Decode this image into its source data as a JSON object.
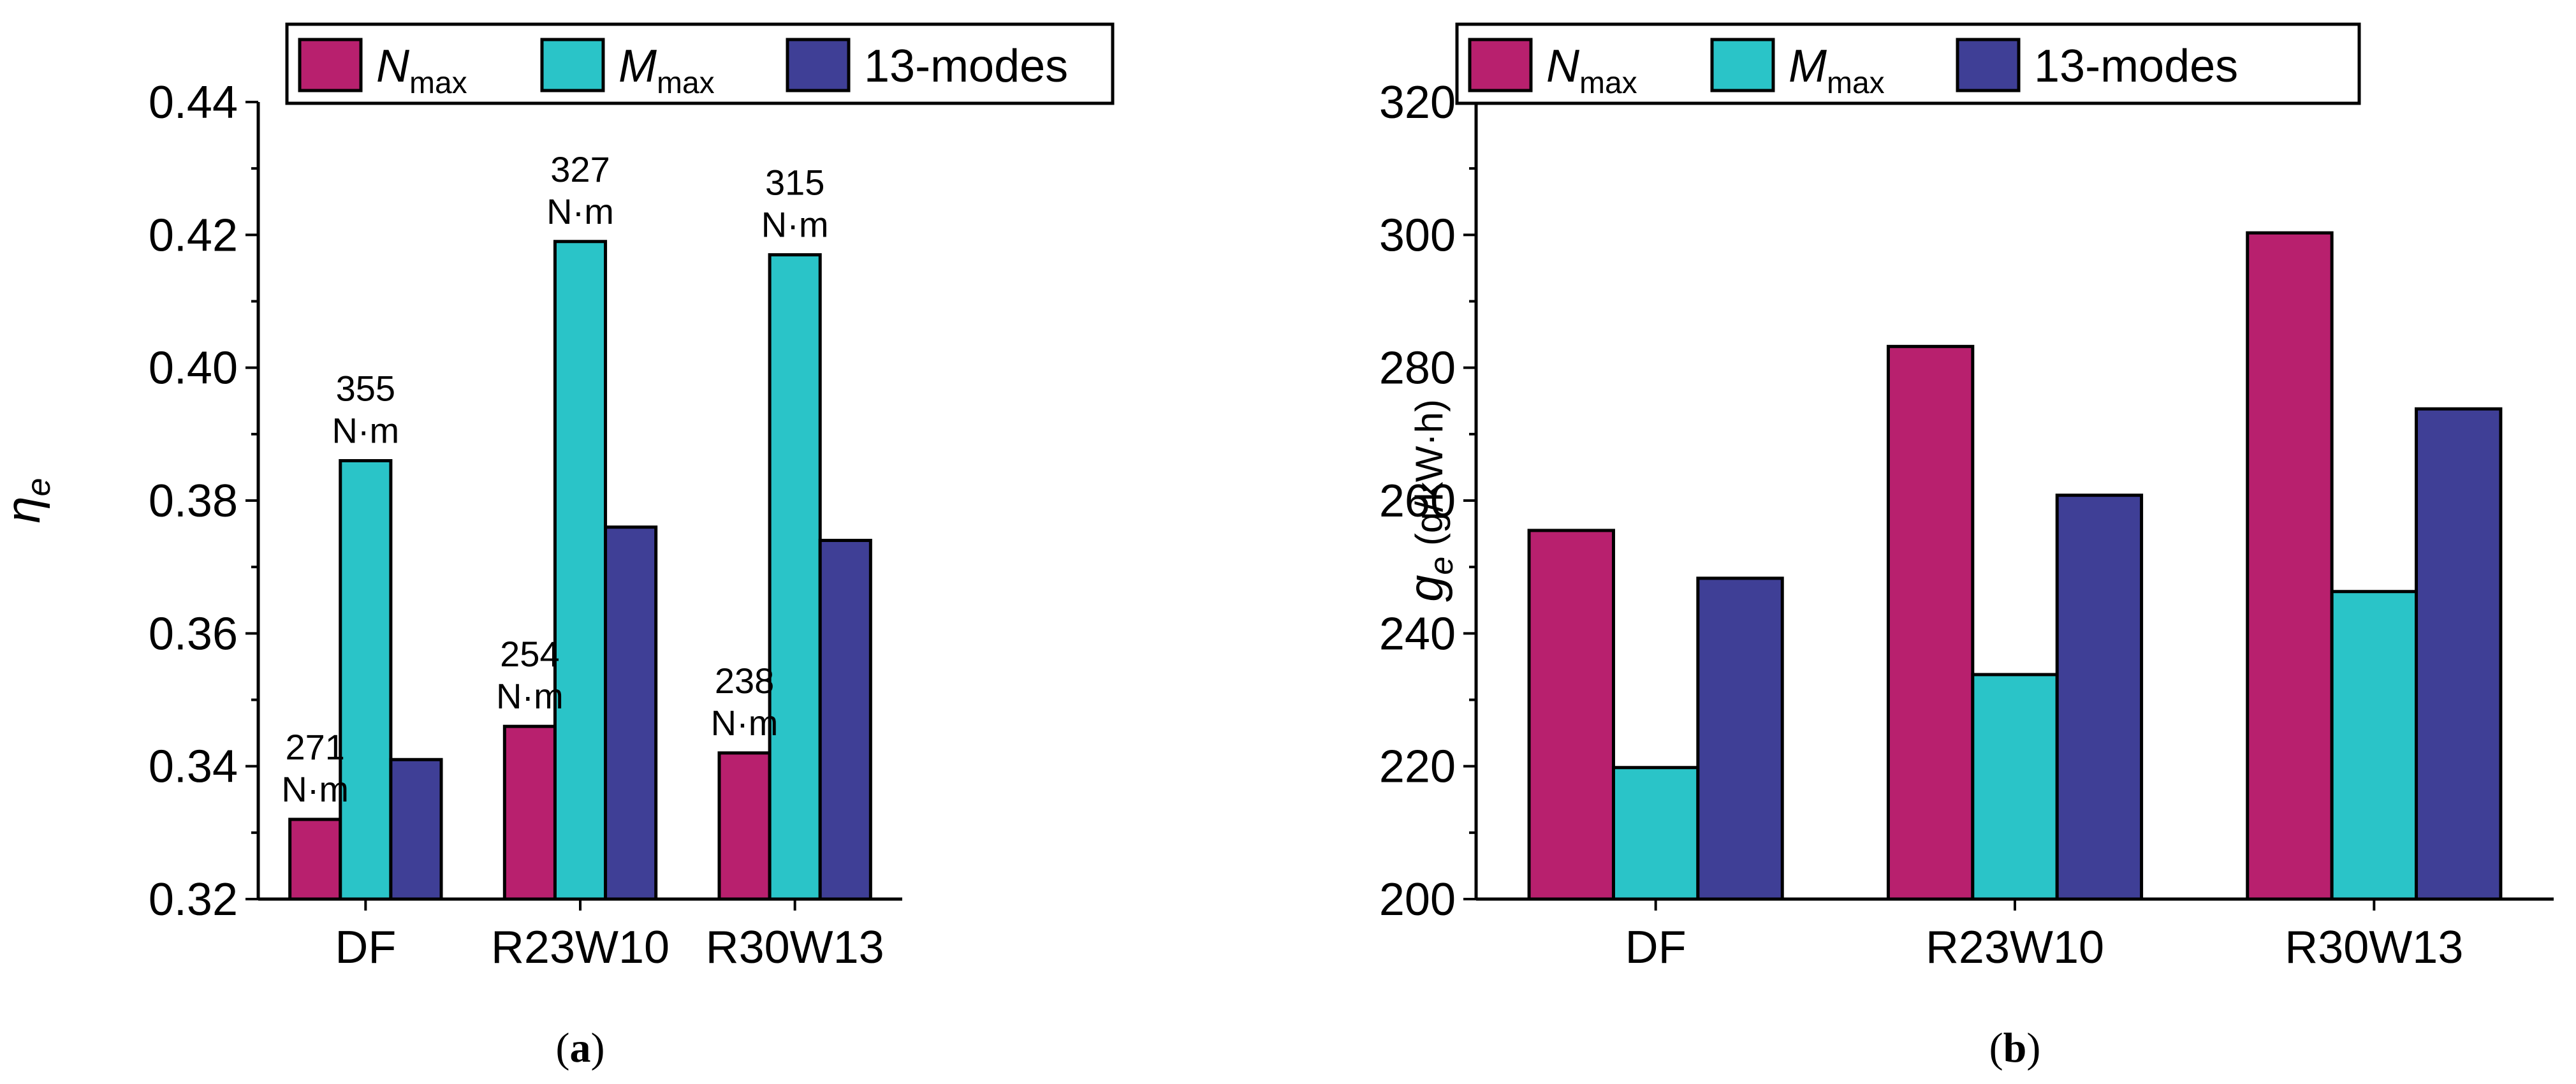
{
  "colors": {
    "nmax": "#b8206e",
    "mmax": "#2ac4c8",
    "modes": "#3f3f96"
  },
  "chart_data": [
    {
      "type": "bar",
      "categories": [
        "DF",
        "R23W10",
        "R30W13"
      ],
      "series": [
        {
          "name": "N_max",
          "values": [
            0.332,
            0.346,
            0.342
          ]
        },
        {
          "name": "M_max",
          "values": [
            0.386,
            0.419,
            0.417
          ]
        },
        {
          "name": "13-modes",
          "values": [
            0.341,
            0.376,
            0.374
          ]
        }
      ],
      "ylim": [
        0.32,
        0.44
      ],
      "yticks": [
        0.32,
        0.34,
        0.36,
        0.38,
        0.4,
        0.42,
        0.44
      ],
      "ytick_labels": [
        "0.32",
        "0.34",
        "0.36",
        "0.38",
        "0.40",
        "0.42",
        "0.44"
      ],
      "ylabel": {
        "symbol": "η",
        "sub": "e",
        "unit": ""
      },
      "legend": {
        "position": "top",
        "items": [
          {
            "symbol": "N",
            "sub": "max",
            "text": ""
          },
          {
            "symbol": "M",
            "sub": "max",
            "text": ""
          },
          {
            "symbol": "",
            "sub": "",
            "text": "13-modes"
          }
        ]
      },
      "annotations": [
        {
          "series": 0,
          "category": 0,
          "lines": [
            "271",
            "N·m"
          ]
        },
        {
          "series": 1,
          "category": 0,
          "lines": [
            "355",
            "N·m"
          ]
        },
        {
          "series": 0,
          "category": 1,
          "lines": [
            "254",
            "N·m"
          ]
        },
        {
          "series": 1,
          "category": 1,
          "lines": [
            "327",
            "N·m"
          ]
        },
        {
          "series": 0,
          "category": 2,
          "lines": [
            "238",
            "N·m"
          ]
        },
        {
          "series": 1,
          "category": 2,
          "lines": [
            "315",
            "N·m"
          ]
        }
      ],
      "caption": {
        "open": "(",
        "letter": "a",
        "close": ")"
      }
    },
    {
      "type": "bar",
      "categories": [
        "DF",
        "R23W10",
        "R30W13"
      ],
      "series": [
        {
          "name": "N_max",
          "values": [
            255.5,
            283.2,
            300.3
          ]
        },
        {
          "name": "M_max",
          "values": [
            219.8,
            233.8,
            246.3
          ]
        },
        {
          "name": "13-modes",
          "values": [
            248.3,
            260.8,
            273.8
          ]
        }
      ],
      "ylim": [
        200,
        320
      ],
      "yticks": [
        200,
        220,
        240,
        260,
        280,
        300,
        320
      ],
      "ytick_labels": [
        "200",
        "220",
        "240",
        "260",
        "280",
        "300",
        "320"
      ],
      "ylabel": {
        "symbol": "g",
        "sub": "e",
        "unit": " (g/kW·h)"
      },
      "legend": {
        "position": "top",
        "items": [
          {
            "symbol": "N",
            "sub": "max",
            "text": ""
          },
          {
            "symbol": "M",
            "sub": "max",
            "text": ""
          },
          {
            "symbol": "",
            "sub": "",
            "text": "13-modes"
          }
        ]
      },
      "annotations": [],
      "caption": {
        "open": "(",
        "letter": "b",
        "close": ")"
      }
    }
  ]
}
